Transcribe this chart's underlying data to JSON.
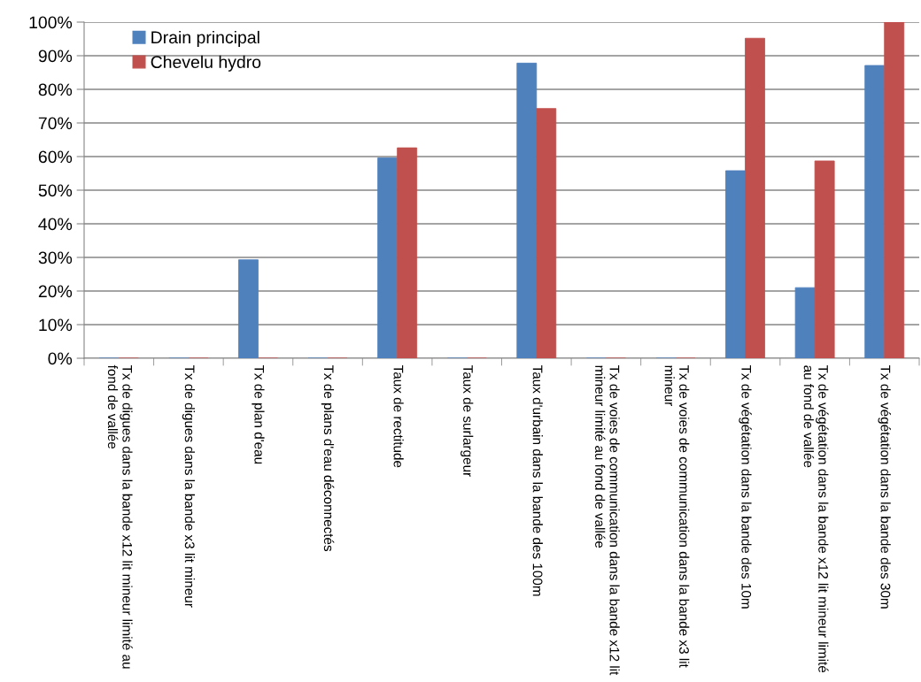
{
  "chart_data": {
    "type": "bar",
    "categories": [
      "Tx de digues dans la bande x12 lit mineur limité au fond de vallée",
      "Tx de digues dans la bande x3 lit mineur",
      "Tx de plan d'eau",
      "Tx de plans d'eau déconnectés",
      "Taux de rectitude",
      "Taux de surlargeur",
      "Taux d'urbain dans la bande des 100m",
      "Tx de voies de communication dans la bande x12 lit mineur limité au fond de vallée",
      "Tx de voies de communication dans la bande x3 lit mineur",
      "Tx de végétation dans la bande des 10m",
      "Tx de végétation dans la bande x12 lit mineur limité au fond de vallée",
      "Tx de végétation dans la bande des 30m"
    ],
    "series": [
      {
        "name": "Drain principal",
        "color": "#4f81bd",
        "values": [
          0,
          0,
          29.3,
          0,
          59.6,
          0,
          87.8,
          0,
          0,
          55.8,
          21.0,
          87.1
        ]
      },
      {
        "name": "Chevelu hydro",
        "color": "#c0504d",
        "values": [
          0,
          0,
          0,
          0,
          62.6,
          0,
          74.3,
          0,
          0,
          95.2,
          58.7,
          100
        ]
      }
    ],
    "ylim": [
      0,
      100
    ],
    "yticks": [
      {
        "value": 0,
        "label": "0%"
      },
      {
        "value": 10,
        "label": "10%"
      },
      {
        "value": 20,
        "label": "20%"
      },
      {
        "value": 30,
        "label": "30%"
      },
      {
        "value": 40,
        "label": "40%"
      },
      {
        "value": 50,
        "label": "50%"
      },
      {
        "value": 60,
        "label": "60%"
      },
      {
        "value": 70,
        "label": "70%"
      },
      {
        "value": 80,
        "label": "80%"
      },
      {
        "value": 90,
        "label": "90%"
      },
      {
        "value": 100,
        "label": "100%"
      }
    ],
    "grid": "y",
    "legend": "top left"
  }
}
